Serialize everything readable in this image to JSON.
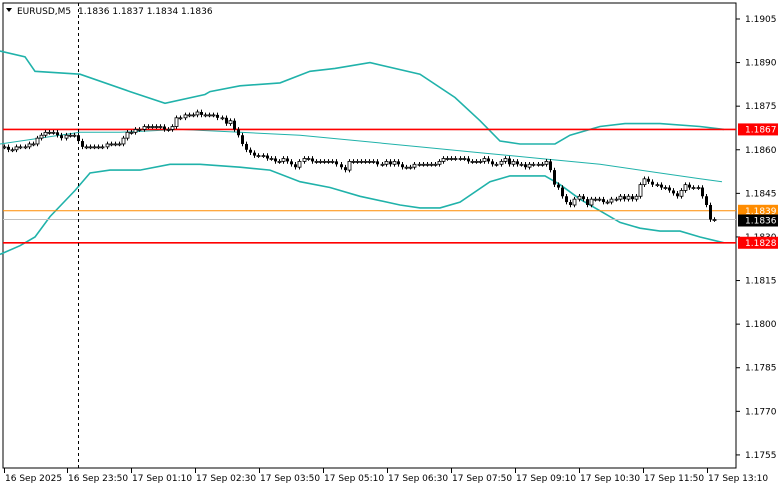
{
  "header": {
    "symbol": "EURUSD,M5",
    "ohlc": "1.1836 1.1837 1.1834 1.1836"
  },
  "colors": {
    "background": "#ffffff",
    "candle": "#000000",
    "bollinger": "#20b2aa",
    "level_line": "#ff0000",
    "price_line": "#ff8c00",
    "current_tag": "#000000"
  },
  "chart_data": {
    "type": "candlestick",
    "title": "",
    "y_ticks": [
      "1.1905",
      "1.1890",
      "1.1875",
      "1.1860",
      "1.1845",
      "1.1830",
      "1.1815",
      "1.1800",
      "1.1785",
      "1.1770",
      "1.1755"
    ],
    "y_range": [
      1.17505,
      1.19105
    ],
    "x_ticks": [
      "16 Sep 2025",
      "16 Sep 23:50",
      "17 Sep 01:10",
      "17 Sep 02:30",
      "17 Sep 03:50",
      "17 Sep 05:10",
      "17 Sep 06:30",
      "17 Sep 07:50",
      "17 Sep 09:10",
      "17 Sep 10:30",
      "17 Sep 11:50",
      "17 Sep 13:10"
    ],
    "horizontal_levels": [
      {
        "price": 1.1867,
        "label": "1.1867",
        "color": "#ff0000"
      },
      {
        "price": 1.1828,
        "label": "1.1828",
        "color": "#ff0000"
      }
    ],
    "price_line": {
      "price": 1.1839,
      "label": "1.1839"
    },
    "current_price": {
      "price": 1.1836,
      "label": "1.1836"
    },
    "vertical_marker_index": 18,
    "closes": [
      1.1861,
      1.186,
      1.186,
      1.1861,
      1.1861,
      1.1861,
      1.1862,
      1.1862,
      1.1864,
      1.1865,
      1.1866,
      1.1866,
      1.1866,
      1.1865,
      1.1864,
      1.1865,
      1.1865,
      1.1865,
      1.1863,
      1.1861,
      1.1861,
      1.1861,
      1.1861,
      1.1861,
      1.1861,
      1.1862,
      1.1862,
      1.1862,
      1.1862,
      1.1864,
      1.1866,
      1.1866,
      1.1867,
      1.1867,
      1.1868,
      1.1868,
      1.1868,
      1.1868,
      1.1868,
      1.1867,
      1.1867,
      1.1868,
      1.1871,
      1.1871,
      1.1872,
      1.1872,
      1.1872,
      1.1873,
      1.1872,
      1.1872,
      1.1872,
      1.1872,
      1.1871,
      1.1871,
      1.1869,
      1.187,
      1.1867,
      1.1865,
      1.1862,
      1.186,
      1.1859,
      1.1858,
      1.1858,
      1.1858,
      1.1857,
      1.1857,
      1.1856,
      1.1856,
      1.1857,
      1.1856,
      1.1855,
      1.1854,
      1.1856,
      1.1857,
      1.1857,
      1.1856,
      1.1856,
      1.1856,
      1.1856,
      1.1856,
      1.1856,
      1.1855,
      1.1854,
      1.1853,
      1.1856,
      1.1856,
      1.1856,
      1.1856,
      1.1856,
      1.1856,
      1.1856,
      1.1855,
      1.1855,
      1.1856,
      1.1855,
      1.1856,
      1.1855,
      1.1854,
      1.1854,
      1.1854,
      1.1855,
      1.1855,
      1.1855,
      1.1855,
      1.1855,
      1.1855,
      1.1856,
      1.1857,
      1.1857,
      1.1857,
      1.1857,
      1.1857,
      1.1857,
      1.1856,
      1.1856,
      1.1856,
      1.1856,
      1.1857,
      1.1856,
      1.1855,
      1.1855,
      1.1856,
      1.1857,
      1.1855,
      1.1856,
      1.1855,
      1.1855,
      1.1854,
      1.1855,
      1.1855,
      1.1855,
      1.1855,
      1.1856,
      1.1853,
      1.1848,
      1.1847,
      1.1844,
      1.1842,
      1.1841,
      1.1843,
      1.1844,
      1.1843,
      1.1841,
      1.1843,
      1.1843,
      1.1843,
      1.1842,
      1.1842,
      1.1843,
      1.1843,
      1.1844,
      1.1843,
      1.1844,
      1.1843,
      1.1844,
      1.1848,
      1.185,
      1.1849,
      1.1848,
      1.1848,
      1.1847,
      1.1847,
      1.1846,
      1.1845,
      1.1844,
      1.1846,
      1.1848,
      1.1847,
      1.1847,
      1.1847,
      1.1844,
      1.1841,
      1.1836,
      1.1836
    ],
    "bands": {
      "upper": [
        [
          0,
          1.1894
        ],
        [
          25,
          1.1892
        ],
        [
          35,
          1.1887
        ],
        [
          80,
          1.1886
        ],
        [
          130,
          1.188
        ],
        [
          165,
          1.1876
        ],
        [
          205,
          1.1879
        ],
        [
          210,
          1.188
        ],
        [
          240,
          1.1882
        ],
        [
          280,
          1.1883
        ],
        [
          310,
          1.1887
        ],
        [
          335,
          1.1888
        ],
        [
          370,
          1.189
        ],
        [
          420,
          1.1886
        ],
        [
          455,
          1.1878
        ],
        [
          480,
          1.187
        ],
        [
          500,
          1.1863
        ],
        [
          520,
          1.1862
        ],
        [
          555,
          1.1862
        ],
        [
          570,
          1.1865
        ],
        [
          600,
          1.1868
        ],
        [
          625,
          1.1869
        ],
        [
          660,
          1.1869
        ],
        [
          700,
          1.1868
        ],
        [
          724,
          1.1867
        ]
      ],
      "middle": [
        [
          0,
          1.1862
        ],
        [
          40,
          1.1864
        ],
        [
          80,
          1.1866
        ],
        [
          120,
          1.1866
        ],
        [
          180,
          1.1867
        ],
        [
          240,
          1.1866
        ],
        [
          300,
          1.1865
        ],
        [
          360,
          1.1863
        ],
        [
          420,
          1.1861
        ],
        [
          480,
          1.1859
        ],
        [
          540,
          1.1857
        ],
        [
          600,
          1.1855
        ],
        [
          660,
          1.1852
        ],
        [
          700,
          1.185
        ],
        [
          722,
          1.1849
        ]
      ],
      "lower": [
        [
          0,
          1.1824
        ],
        [
          20,
          1.1827
        ],
        [
          35,
          1.183
        ],
        [
          50,
          1.1837
        ],
        [
          75,
          1.1846
        ],
        [
          90,
          1.1852
        ],
        [
          110,
          1.1853
        ],
        [
          140,
          1.1853
        ],
        [
          170,
          1.1855
        ],
        [
          200,
          1.1855
        ],
        [
          240,
          1.1854
        ],
        [
          270,
          1.1853
        ],
        [
          300,
          1.1849
        ],
        [
          330,
          1.1847
        ],
        [
          360,
          1.1844
        ],
        [
          400,
          1.1841
        ],
        [
          420,
          1.184
        ],
        [
          440,
          1.184
        ],
        [
          460,
          1.1842
        ],
        [
          490,
          1.1849
        ],
        [
          510,
          1.1851
        ],
        [
          545,
          1.1851
        ],
        [
          560,
          1.1848
        ],
        [
          580,
          1.1843
        ],
        [
          600,
          1.1839
        ],
        [
          620,
          1.1835
        ],
        [
          640,
          1.1833
        ],
        [
          660,
          1.1832
        ],
        [
          680,
          1.1832
        ],
        [
          700,
          1.183
        ],
        [
          724,
          1.1828
        ]
      ]
    }
  }
}
